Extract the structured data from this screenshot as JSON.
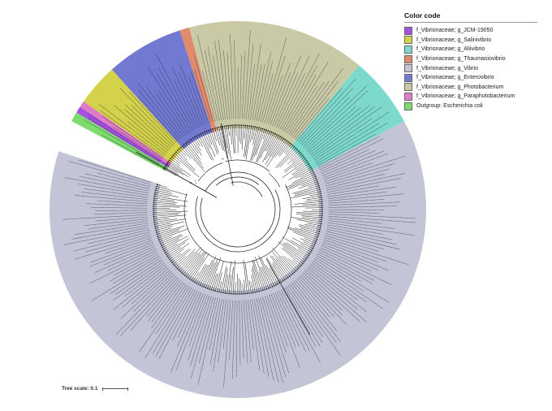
{
  "legend": {
    "title": "Color code",
    "items": [
      {
        "label": "f_Vibrionaceae; g_JCM-19050",
        "color": "#a64fe0"
      },
      {
        "label": "f_Vibrionaceae; g_Salinivibrio",
        "color": "#d4d24a"
      },
      {
        "label": "f_Vibrionaceae; g_Aliivibrio",
        "color": "#7ed9cd"
      },
      {
        "label": "f_Vibrionaceae; g_Thaumasiovibrio",
        "color": "#e08a6e"
      },
      {
        "label": "f_Vibrionaceae; g_Vibrio",
        "color": "#c3c4d6"
      },
      {
        "label": "f_Vibrionaceae; g_Enterovibrio",
        "color": "#7279d0"
      },
      {
        "label": "f_Vibrionaceae; g_Photobacterium",
        "color": "#cac9a6"
      },
      {
        "label": "f_Vibrionaceae; g_Paraphotobacterium",
        "color": "#e07cc4"
      },
      {
        "label": "Outgroup: Escherichia coli",
        "color": "#7ddc6e"
      }
    ]
  },
  "scale": {
    "label": "Tree scale: 0.1"
  },
  "tree": {
    "clades": [
      {
        "genus": "Vibrio",
        "color": "#c3c4d6",
        "start": 62,
        "end": 288,
        "leaves": 165
      },
      {
        "genus": "Aliivibrio",
        "color": "#7ed9cd",
        "start": 40,
        "end": 62,
        "leaves": 16
      },
      {
        "genus": "Photobacterium",
        "color": "#cac9a6",
        "start": -15,
        "end": 40,
        "leaves": 42
      },
      {
        "genus": "Thaumasiovibrio",
        "color": "#e08a6e",
        "start": -18,
        "end": -15,
        "leaves": 2
      },
      {
        "genus": "Enterovibrio",
        "color": "#7279d0",
        "start": -42,
        "end": -18,
        "leaves": 16
      },
      {
        "genus": "Salinivibrio",
        "color": "#d4d24a",
        "start": -55,
        "end": -42,
        "leaves": 9
      },
      {
        "genus": "Paraphotobacterium",
        "color": "#e07cc4",
        "start": -57,
        "end": -55,
        "leaves": 2
      },
      {
        "genus": "JCM-19050",
        "color": "#a64fe0",
        "start": -59,
        "end": -57,
        "leaves": 2
      },
      {
        "genus": "Outgroup",
        "color": "#7ddc6e",
        "start": -62,
        "end": -59,
        "leaves": 2
      }
    ]
  }
}
